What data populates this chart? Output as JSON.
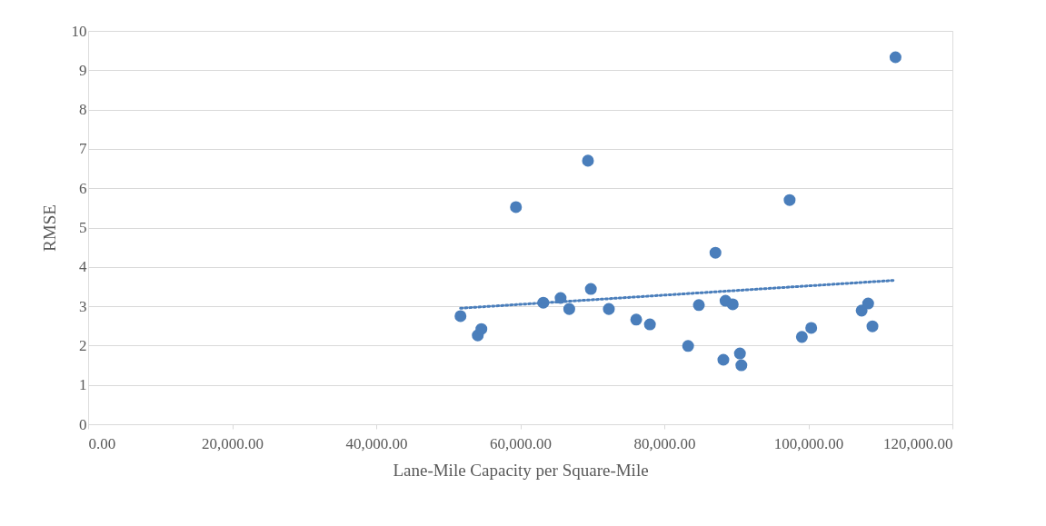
{
  "chart_data": {
    "type": "scatter",
    "xlabel": "Lane-Mile Capacity per Square-Mile",
    "ylabel": "RMSE",
    "xlim": [
      0,
      120000
    ],
    "ylim": [
      0,
      10
    ],
    "xticks": [
      {
        "value": 0,
        "label": "0.00"
      },
      {
        "value": 20000,
        "label": "20,000.00"
      },
      {
        "value": 40000,
        "label": "40,000.00"
      },
      {
        "value": 60000,
        "label": "60,000.00"
      },
      {
        "value": 80000,
        "label": "80,000.00"
      },
      {
        "value": 100000,
        "label": "100,000.00"
      },
      {
        "value": 120000,
        "label": "120,000.00"
      }
    ],
    "yticks": [
      0,
      1,
      2,
      3,
      4,
      5,
      6,
      7,
      8,
      9,
      10
    ],
    "grid": "y",
    "series": [
      {
        "color": "#4a7ebb",
        "marker": "circle",
        "x": [
          51700,
          54100,
          54600,
          59400,
          63200,
          65600,
          66800,
          69400,
          69800,
          72300,
          76100,
          78000,
          83300,
          84800,
          87100,
          88200,
          88500,
          89500,
          90500,
          90700,
          97400,
          99100,
          100400,
          107400,
          108300,
          108900,
          112100
        ],
        "values": [
          2.75,
          2.26,
          2.42,
          5.52,
          3.09,
          3.21,
          2.93,
          6.7,
          3.44,
          2.93,
          2.66,
          2.54,
          1.99,
          3.03,
          4.36,
          1.64,
          3.14,
          3.05,
          1.8,
          1.5,
          5.7,
          2.22,
          2.45,
          2.89,
          3.07,
          2.49,
          9.33
        ]
      },
      {
        "type": "line",
        "color": "#4a7ebb",
        "line_style": "dotted",
        "marker": "none",
        "x": [
          51700,
          112100
        ],
        "values": [
          2.95,
          3.66
        ]
      }
    ]
  }
}
